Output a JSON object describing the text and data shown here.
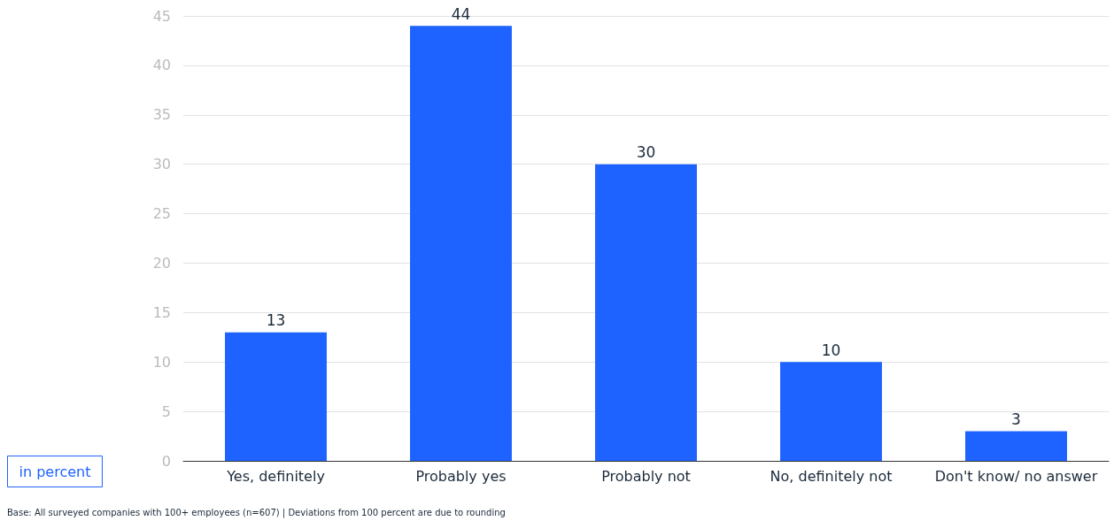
{
  "chart_data": {
    "type": "bar",
    "ylabel": "in percent",
    "categories": [
      "Yes, definitely",
      "Probably yes",
      "Probably not",
      "No, definitely not",
      "Don't know/ no answer"
    ],
    "values": [
      13,
      44,
      30,
      10,
      3
    ],
    "color": "#1e63ff",
    "data_labels": true,
    "ylim": [
      0,
      45
    ],
    "yticks": [
      0,
      5,
      10,
      15,
      20,
      25,
      30,
      35,
      40,
      45
    ],
    "grid": "y",
    "annotations": [
      "Base: All surveyed companies with 100+ employees (n=607) | Deviations from 100 percent are due to rounding"
    ]
  }
}
